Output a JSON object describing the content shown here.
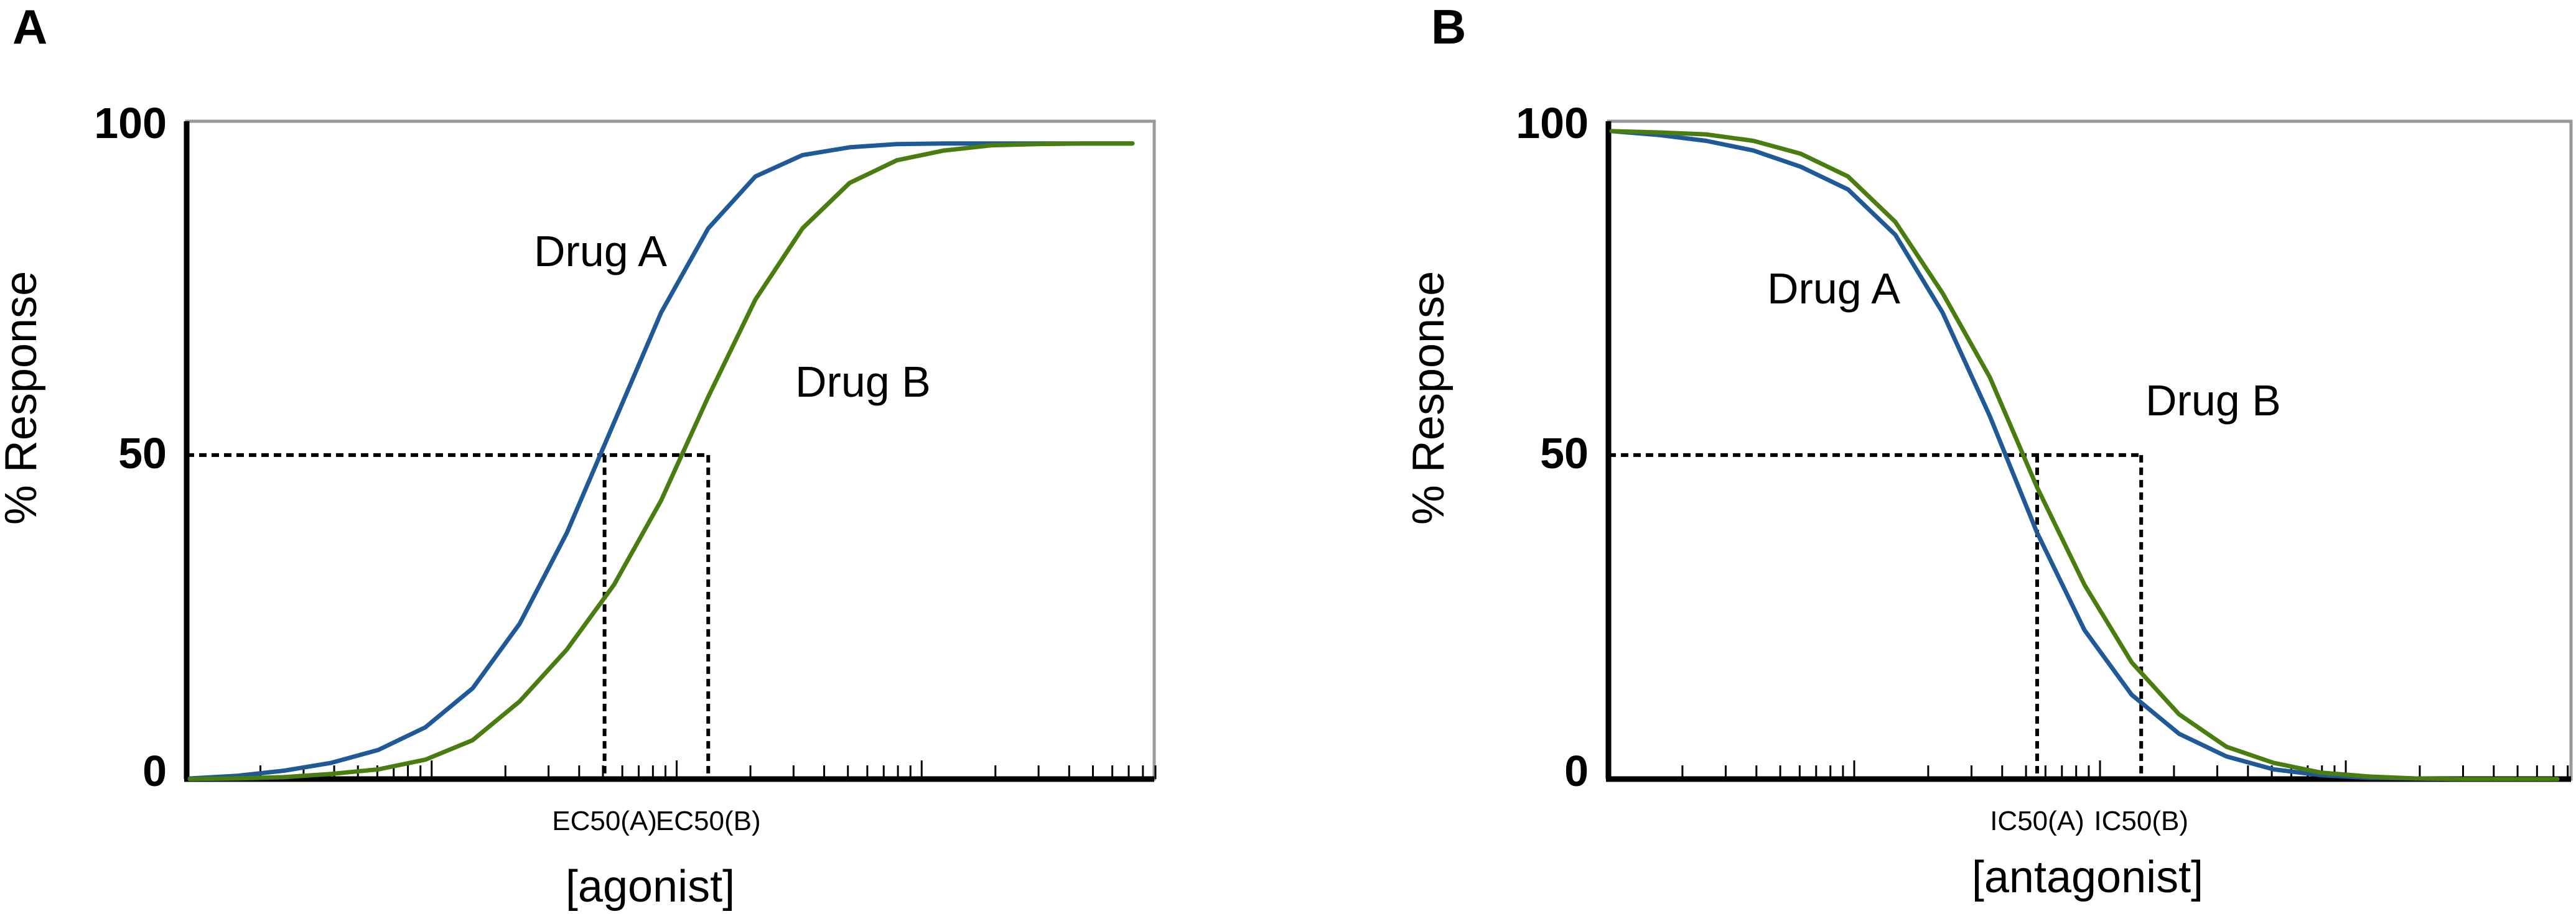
{
  "chart_data": [
    {
      "panel": "A",
      "type": "line",
      "xlabel": "[agonist]",
      "ylabel": "% Response",
      "x_scale": "log",
      "yticks": [
        "100",
        "50",
        "0"
      ],
      "ylim": [
        0,
        100
      ],
      "grid": false,
      "series": [
        {
          "name": "Drug A",
          "color": "#1f5a96",
          "x": [
            0.0,
            0.05,
            0.1,
            0.15,
            0.2,
            0.25,
            0.3,
            0.35,
            0.4,
            0.45,
            0.5,
            0.55,
            0.6,
            0.65,
            0.7,
            0.75,
            0.8,
            0.85,
            0.9,
            0.95,
            1.0
          ],
          "values": [
            0.1,
            0.5,
            1.3,
            2.5,
            4.5,
            8,
            14,
            24,
            38,
            55,
            72,
            85,
            93,
            96.3,
            97.5,
            98,
            98.1,
            98.1,
            98.1,
            98.1,
            98.1
          ]
        },
        {
          "name": "Drug B",
          "color": "#4a7d0f",
          "x": [
            0.0,
            0.05,
            0.1,
            0.15,
            0.2,
            0.25,
            0.3,
            0.35,
            0.4,
            0.45,
            0.5,
            0.55,
            0.6,
            0.65,
            0.7,
            0.75,
            0.8,
            0.85,
            0.9,
            0.95,
            1.0
          ],
          "values": [
            0,
            0.1,
            0.3,
            0.8,
            1.5,
            3,
            6,
            12,
            20,
            30,
            43,
            59,
            74,
            85,
            92,
            95.5,
            97,
            97.8,
            98,
            98.1,
            98.1
          ]
        }
      ],
      "markers": [
        {
          "label": "EC50(A)",
          "x": 0.44,
          "y": 50
        },
        {
          "label": "EC50(B)",
          "x": 0.55,
          "y": 50
        }
      ],
      "drug_labels": [
        "Drug A",
        "Drug B"
      ]
    },
    {
      "panel": "B",
      "type": "line",
      "xlabel": "[antagonist]",
      "ylabel": "% Response",
      "x_scale": "log",
      "yticks": [
        "100",
        "50",
        "0"
      ],
      "ylim": [
        0,
        100
      ],
      "grid": false,
      "series": [
        {
          "name": "Drug A",
          "color": "#1f5a96",
          "x": [
            0.0,
            0.05,
            0.1,
            0.15,
            0.2,
            0.25,
            0.3,
            0.35,
            0.4,
            0.45,
            0.5,
            0.55,
            0.6,
            0.65,
            0.7,
            0.75,
            0.8,
            0.85,
            0.9,
            0.95,
            1.0
          ],
          "values": [
            100,
            99.4,
            98.5,
            97,
            94.5,
            91,
            84,
            72,
            56,
            38,
            23,
            13,
            7,
            3.5,
            1.5,
            0.6,
            0.2,
            0.1,
            0,
            0,
            0
          ]
        },
        {
          "name": "Drug B",
          "color": "#4a7d0f",
          "x": [
            0.0,
            0.05,
            0.1,
            0.15,
            0.2,
            0.25,
            0.3,
            0.35,
            0.4,
            0.45,
            0.5,
            0.55,
            0.6,
            0.65,
            0.7,
            0.75,
            0.8,
            0.85,
            0.9,
            0.95,
            1.0
          ],
          "values": [
            100,
            99.8,
            99.5,
            98.5,
            96.5,
            93,
            86,
            75,
            62,
            45,
            30,
            18,
            10,
            5,
            2.5,
            1,
            0.4,
            0.1,
            0,
            0,
            0
          ]
        }
      ],
      "markers": [
        {
          "label": "IC50(A)",
          "x": 0.45,
          "y": 50
        },
        {
          "label": "IC50(B)",
          "x": 0.56,
          "y": 50
        }
      ],
      "drug_labels": [
        "Drug A",
        "Drug B"
      ]
    }
  ]
}
